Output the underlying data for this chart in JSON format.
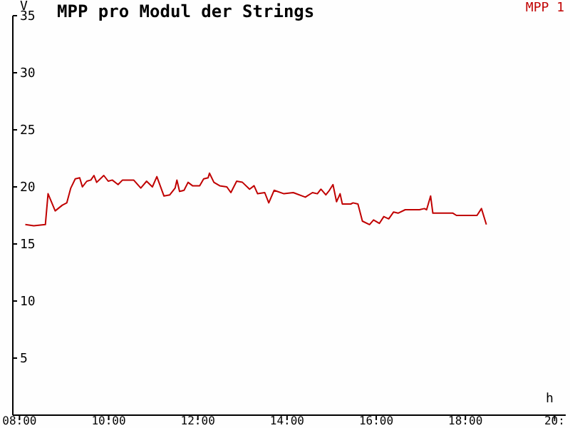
{
  "chart_data": {
    "type": "line",
    "title": "MPP pro Modul der Strings",
    "xlabel": "h",
    "ylabel": "V",
    "xlim": [
      7.85,
      20.25
    ],
    "ylim": [
      0,
      35
    ],
    "xticks": [
      {
        "value": 8,
        "label": "08:00"
      },
      {
        "value": 10,
        "label": "10:00"
      },
      {
        "value": 12,
        "label": "12:00"
      },
      {
        "value": 14,
        "label": "14:00"
      },
      {
        "value": 16,
        "label": "16:00"
      },
      {
        "value": 18,
        "label": "18:00"
      },
      {
        "value": 20,
        "label": "20:"
      }
    ],
    "yticks": [
      5,
      10,
      15,
      20,
      25,
      30,
      35
    ],
    "legend": "top right",
    "marker": "none",
    "line_style": "solid",
    "grid": false,
    "series": [
      {
        "name": "MPP 1",
        "color": "#c00000",
        "x": [
          8.13,
          8.32,
          8.58,
          8.64,
          8.8,
          8.96,
          9.06,
          9.15,
          9.25,
          9.35,
          9.41,
          9.51,
          9.6,
          9.67,
          9.73,
          9.89,
          9.99,
          10.08,
          10.21,
          10.31,
          10.56,
          10.72,
          10.85,
          10.98,
          11.08,
          11.24,
          11.37,
          11.49,
          11.53,
          11.59,
          11.69,
          11.78,
          11.88,
          12.04,
          12.13,
          12.23,
          12.26,
          12.36,
          12.49,
          12.65,
          12.74,
          12.87,
          13.0,
          13.16,
          13.26,
          13.34,
          13.5,
          13.59,
          13.71,
          13.93,
          14.14,
          14.41,
          14.57,
          14.68,
          14.76,
          14.87,
          14.95,
          15.03,
          15.11,
          15.19,
          15.24,
          15.43,
          15.48,
          15.59,
          15.69,
          15.85,
          15.94,
          16.07,
          16.17,
          16.28,
          16.39,
          16.49,
          16.65,
          16.97,
          17.08,
          17.13,
          17.22,
          17.27,
          17.72,
          17.8,
          18.26,
          18.36,
          18.47
        ],
        "values": [
          16.7,
          16.6,
          16.7,
          19.4,
          17.9,
          18.4,
          18.6,
          19.9,
          20.7,
          20.8,
          20.0,
          20.5,
          20.6,
          21.0,
          20.4,
          21.0,
          20.5,
          20.6,
          20.2,
          20.6,
          20.6,
          19.9,
          20.5,
          20.0,
          20.9,
          19.2,
          19.3,
          19.9,
          20.6,
          19.6,
          19.7,
          20.4,
          20.1,
          20.1,
          20.7,
          20.8,
          21.2,
          20.4,
          20.1,
          20.0,
          19.5,
          20.5,
          20.4,
          19.8,
          20.1,
          19.4,
          19.5,
          18.6,
          19.7,
          19.4,
          19.5,
          19.1,
          19.5,
          19.4,
          19.8,
          19.3,
          19.7,
          20.2,
          18.7,
          19.4,
          18.5,
          18.5,
          18.6,
          18.5,
          17.0,
          16.7,
          17.1,
          16.8,
          17.4,
          17.2,
          17.8,
          17.7,
          18.0,
          18.0,
          18.1,
          18.0,
          19.2,
          17.7,
          17.7,
          17.5,
          17.5,
          18.1,
          16.7
        ]
      }
    ]
  }
}
